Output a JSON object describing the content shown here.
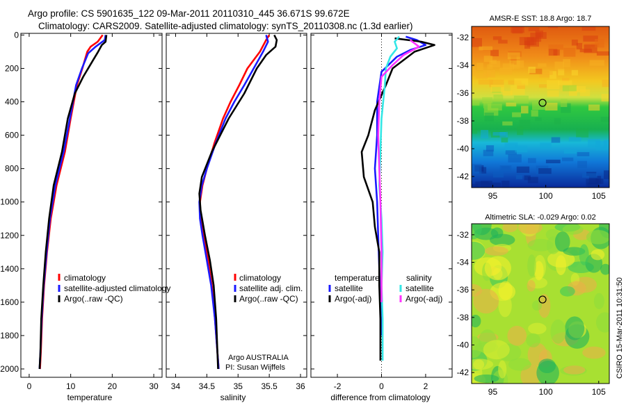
{
  "title": {
    "line1": "Argo profile: CS 5901635_122 09-Mar-2011 20110310_445 36.671S 99.672E",
    "line2": "Climatology: CARS2009. Satellite-adjusted climatology: synTS_20110308.nc (1.3d earlier)"
  },
  "colors": {
    "climatology": "#ff0000",
    "satellite": "#1a1aff",
    "argo": "#000000",
    "salinity_satellite": "#33e6e6",
    "salinity_argo": "#ff33ff"
  },
  "credit": "Argo AUSTRALIA",
  "pi": "PI: Susan Wijffels",
  "stamp": "CSIRO 15-Mar-2011 10:31:50",
  "chart_data": [
    {
      "type": "line",
      "xlabel": "temperature",
      "ylabel": "",
      "xlim": [
        -2,
        32
      ],
      "ylim": [
        2050,
        -10
      ],
      "x_ticks": [
        0,
        10,
        20,
        30
      ],
      "y_ticks": [
        0,
        200,
        400,
        600,
        800,
        1000,
        1200,
        1400,
        1600,
        1800,
        2000
      ],
      "y_inverted": true,
      "legend": [
        "climatology",
        "satellite-adjusted climatology",
        "Argo(..raw -QC)"
      ],
      "series": [
        {
          "name": "climatology",
          "color": "#ff0000",
          "points": [
            [
              17.7,
              0
            ],
            [
              16.5,
              40
            ],
            [
              14.8,
              70
            ],
            [
              14.0,
              100
            ],
            [
              12.8,
              200
            ],
            [
              11.5,
              300
            ],
            [
              10.0,
              500
            ],
            [
              8.6,
              700
            ],
            [
              6.6,
              900
            ],
            [
              5.2,
              1100
            ],
            [
              4.3,
              1300
            ],
            [
              3.6,
              1500
            ],
            [
              3.1,
              1700
            ],
            [
              2.8,
              1900
            ],
            [
              2.6,
              2000
            ]
          ]
        },
        {
          "name": "satellite-adjusted climatology",
          "color": "#1a1aff",
          "points": [
            [
              18.4,
              0
            ],
            [
              18.2,
              30
            ],
            [
              16.0,
              70
            ],
            [
              14.2,
              110
            ],
            [
              12.7,
              200
            ],
            [
              11.3,
              300
            ],
            [
              9.8,
              500
            ],
            [
              8.3,
              700
            ],
            [
              6.3,
              900
            ],
            [
              5.0,
              1100
            ],
            [
              4.2,
              1300
            ],
            [
              3.5,
              1500
            ],
            [
              3.0,
              1700
            ],
            [
              2.7,
              1900
            ],
            [
              2.5,
              2000
            ]
          ]
        },
        {
          "name": "Argo(..raw -QC)",
          "color": "#000000",
          "points": [
            [
              18.6,
              0
            ],
            [
              18.4,
              40
            ],
            [
              17.5,
              60
            ],
            [
              16.6,
              100
            ],
            [
              15.4,
              150
            ],
            [
              13.0,
              250
            ],
            [
              11.0,
              350
            ],
            [
              9.3,
              500
            ],
            [
              7.9,
              700
            ],
            [
              5.9,
              900
            ],
            [
              4.8,
              1100
            ],
            [
              4.0,
              1300
            ],
            [
              3.4,
              1500
            ],
            [
              2.9,
              1700
            ],
            [
              2.7,
              1900
            ],
            [
              2.5,
              2000
            ]
          ]
        }
      ]
    },
    {
      "type": "line",
      "xlabel": "salinity",
      "ylabel": "",
      "xlim": [
        33.85,
        36.1
      ],
      "ylim": [
        2050,
        -10
      ],
      "x_ticks": [
        34,
        34.5,
        35,
        35.5,
        36
      ],
      "legend": [
        "climatology",
        "satellite adj. clim.",
        "Argo(..raw -QC)"
      ],
      "series": [
        {
          "name": "climatology",
          "color": "#ff0000",
          "points": [
            [
              35.5,
              0
            ],
            [
              35.45,
              30
            ],
            [
              35.35,
              100
            ],
            [
              35.15,
              200
            ],
            [
              35.02,
              300
            ],
            [
              34.88,
              400
            ],
            [
              34.76,
              500
            ],
            [
              34.62,
              650
            ],
            [
              34.5,
              800
            ],
            [
              34.43,
              900
            ],
            [
              34.39,
              1000
            ],
            [
              34.4,
              1100
            ],
            [
              34.45,
              1200
            ],
            [
              34.52,
              1350
            ],
            [
              34.58,
              1500
            ],
            [
              34.63,
              1700
            ],
            [
              34.67,
              1900
            ],
            [
              34.69,
              2000
            ]
          ]
        },
        {
          "name": "satellite adj. clim.",
          "color": "#1a1aff",
          "points": [
            [
              35.45,
              0
            ],
            [
              35.48,
              40
            ],
            [
              35.4,
              100
            ],
            [
              35.25,
              200
            ],
            [
              35.1,
              300
            ],
            [
              34.94,
              400
            ],
            [
              34.8,
              500
            ],
            [
              34.64,
              650
            ],
            [
              34.5,
              800
            ],
            [
              34.42,
              900
            ],
            [
              34.38,
              1000
            ],
            [
              34.39,
              1100
            ],
            [
              34.43,
              1200
            ],
            [
              34.5,
              1350
            ],
            [
              34.57,
              1500
            ],
            [
              34.63,
              1700
            ],
            [
              34.67,
              1900
            ],
            [
              34.69,
              2000
            ]
          ]
        },
        {
          "name": "Argo(..raw -QC)",
          "color": "#000000",
          "points": [
            [
              35.58,
              0
            ],
            [
              35.62,
              30
            ],
            [
              35.6,
              70
            ],
            [
              35.45,
              120
            ],
            [
              35.3,
              200
            ],
            [
              35.1,
              350
            ],
            [
              34.85,
              500
            ],
            [
              34.58,
              700
            ],
            [
              34.42,
              850
            ],
            [
              34.38,
              950
            ],
            [
              34.4,
              1050
            ],
            [
              34.47,
              1200
            ],
            [
              34.55,
              1350
            ],
            [
              34.61,
              1500
            ],
            [
              34.65,
              1700
            ],
            [
              34.67,
              1900
            ],
            [
              34.68,
              2000
            ]
          ]
        }
      ]
    },
    {
      "type": "line",
      "xlabel": "difference from climatology",
      "ylabel": "",
      "xlim": [
        -3.2,
        3.2
      ],
      "ylim": [
        2050,
        -10
      ],
      "x_ticks": [
        -2,
        0,
        2
      ],
      "legend_titles": [
        "temperature",
        "salinity"
      ],
      "legend_temperature": [
        "satellite",
        "Argo(-adj)"
      ],
      "legend_salinity": [
        "satellite",
        "Argo(-adj)"
      ],
      "series": [
        {
          "name": "satellite (temperature)",
          "color": "#1a1aff",
          "points": [
            [
              1.1,
              10
            ],
            [
              1.6,
              30
            ],
            [
              2.0,
              60
            ],
            [
              1.3,
              90
            ],
            [
              0.7,
              130
            ],
            [
              0.0,
              220
            ],
            [
              -0.2,
              400
            ],
            [
              -0.2,
              600
            ],
            [
              -0.3,
              800
            ],
            [
              -0.2,
              1000
            ],
            [
              -0.15,
              1200
            ],
            [
              -0.1,
              1400
            ],
            [
              -0.05,
              1600
            ],
            [
              0.0,
              1800
            ]
          ]
        },
        {
          "name": "Argo(-adj) (temperature)",
          "color": "#000000",
          "points": [
            [
              0.6,
              20
            ],
            [
              1.8,
              40
            ],
            [
              2.4,
              60
            ],
            [
              1.5,
              100
            ],
            [
              0.5,
              200
            ],
            [
              0.2,
              300
            ],
            [
              -0.3,
              450
            ],
            [
              -0.6,
              600
            ],
            [
              -0.9,
              700
            ],
            [
              -0.8,
              850
            ],
            [
              -0.4,
              1000
            ],
            [
              -0.3,
              1150
            ],
            [
              -0.1,
              1300
            ],
            [
              -0.1,
              1500
            ],
            [
              -0.05,
              1700
            ],
            [
              -0.05,
              1950
            ]
          ]
        },
        {
          "name": "satellite (salinity)",
          "color": "#33e6e6",
          "points": [
            [
              0.8,
              10
            ],
            [
              0.6,
              40
            ],
            [
              0.7,
              80
            ],
            [
              0.4,
              130
            ],
            [
              0.2,
              200
            ],
            [
              0.15,
              300
            ],
            [
              0.0,
              500
            ],
            [
              -0.05,
              700
            ],
            [
              -0.1,
              900
            ],
            [
              0.0,
              1100
            ],
            [
              0.05,
              1300
            ],
            [
              0.0,
              1500
            ],
            [
              0.05,
              1700
            ],
            [
              0.05,
              1950
            ]
          ]
        },
        {
          "name": "Argo(-adj) (salinity)",
          "color": "#ff33ff",
          "points": [
            [
              1.3,
              30
            ],
            [
              1.7,
              70
            ],
            [
              1.0,
              120
            ],
            [
              0.5,
              180
            ],
            [
              0.0,
              250
            ],
            [
              -0.1,
              400
            ],
            [
              -0.15,
              600
            ],
            [
              -0.1,
              800
            ],
            [
              -0.05,
              1000
            ],
            [
              0.0,
              1300
            ],
            [
              0.0,
              1600
            ]
          ]
        }
      ]
    },
    {
      "type": "heatmap",
      "title": "AMSR-E SST: 18.8 Argo: 18.7",
      "xlim": [
        93,
        106
      ],
      "ylim": [
        -42.8,
        -31.2
      ],
      "x_ticks": [
        95,
        100,
        105
      ],
      "y_ticks": [
        -32,
        -34,
        -36,
        -38,
        -40,
        -42
      ],
      "marker": [
        99.7,
        -36.7
      ]
    },
    {
      "type": "heatmap",
      "title": "Altimetric SLA: -0.029 Argo: 0.02",
      "xlim": [
        93,
        106
      ],
      "ylim": [
        -42.8,
        -31.2
      ],
      "x_ticks": [
        95,
        100,
        105
      ],
      "y_ticks": [
        -32,
        -34,
        -36,
        -38,
        -40,
        -42
      ],
      "marker": [
        99.7,
        -36.7
      ]
    }
  ]
}
